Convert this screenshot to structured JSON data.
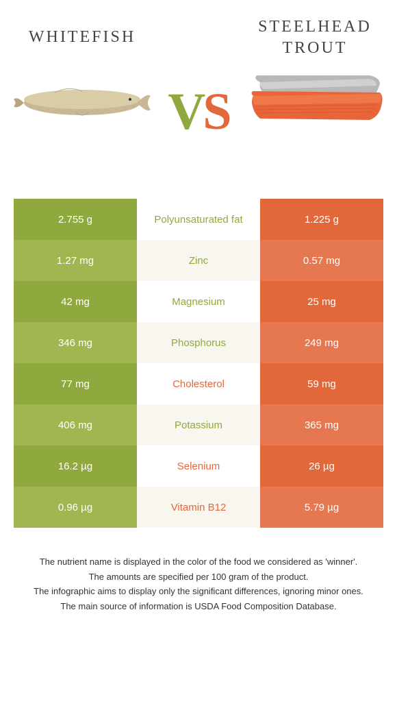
{
  "header": {
    "left_title": "WHITEFISH",
    "right_title": "STEELHEAD\nTROUT",
    "vs_v": "V",
    "vs_s": "S"
  },
  "colors": {
    "left_primary": "#8fa93f",
    "left_alt": "#9fb651",
    "right_primary": "#e2683c",
    "right_alt": "#e57850",
    "mid_alt_bg": "#f9f6ef"
  },
  "rows": [
    {
      "left": "2.755 g",
      "nutrient": "Polyunsaturated fat",
      "right": "1.225 g",
      "winner": "left"
    },
    {
      "left": "1.27 mg",
      "nutrient": "Zinc",
      "right": "0.57 mg",
      "winner": "left"
    },
    {
      "left": "42 mg",
      "nutrient": "Magnesium",
      "right": "25 mg",
      "winner": "left"
    },
    {
      "left": "346 mg",
      "nutrient": "Phosphorus",
      "right": "249 mg",
      "winner": "left"
    },
    {
      "left": "77 mg",
      "nutrient": "Cholesterol",
      "right": "59 mg",
      "winner": "right"
    },
    {
      "left": "406 mg",
      "nutrient": "Potassium",
      "right": "365 mg",
      "winner": "left"
    },
    {
      "left": "16.2 µg",
      "nutrient": "Selenium",
      "right": "26 µg",
      "winner": "right"
    },
    {
      "left": "0.96 µg",
      "nutrient": "Vitamin B12",
      "right": "5.79 µg",
      "winner": "right"
    }
  ],
  "footer": {
    "line1": "The nutrient name is displayed in the color of the food we considered as 'winner'.",
    "line2": "The amounts are specified per 100 gram of the product.",
    "line3": "The infographic aims to display only the significant differences, ignoring minor ones.",
    "line4": "The main source of information is USDA Food Composition Database."
  }
}
